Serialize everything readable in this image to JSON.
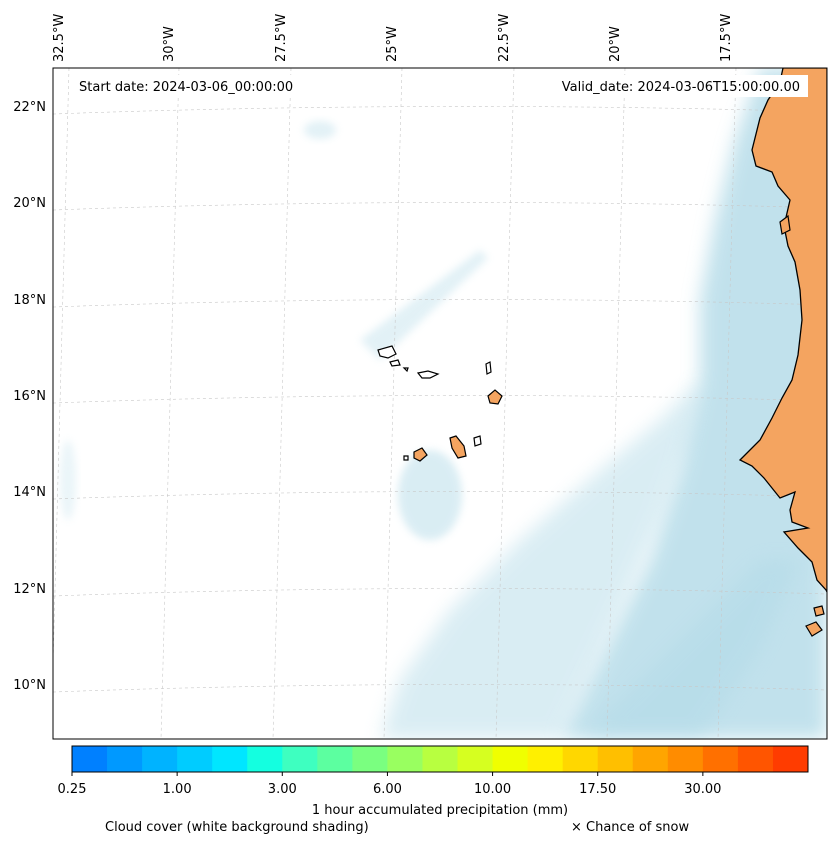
{
  "header": {
    "start_date": "Start date: 2024-03-06_00:00:00",
    "valid_date": "Valid_date: 2024-03-06T15:00:00.00"
  },
  "map": {
    "longitude_ticks": [
      "32.5°W",
      "30°W",
      "27.5°W",
      "25°W",
      "22.5°W",
      "20°W",
      "17.5°W"
    ],
    "latitude_ticks": [
      "22°N",
      "20°N",
      "18°N",
      "16°N",
      "14°N",
      "12°N",
      "10°N"
    ],
    "colors": {
      "land": "#f4a460",
      "cloud": "#add8e6",
      "gridline": "#c8c8c8",
      "coastline": "#000000"
    }
  },
  "colorbar": {
    "tick_labels": [
      "0.25",
      "1.00",
      "3.00",
      "6.00",
      "10.00",
      "17.50",
      "30.00"
    ],
    "colors": [
      "#0080ff",
      "#0099ff",
      "#00b3ff",
      "#00ccff",
      "#00e6ff",
      "#14ffe0",
      "#3effc0",
      "#5cffa0",
      "#7aff80",
      "#99ff60",
      "#b8ff40",
      "#d6ff20",
      "#f0ff00",
      "#fff000",
      "#ffd700",
      "#ffbf00",
      "#ffa500",
      "#ff8c00",
      "#ff7000",
      "#ff5500",
      "#ff3c00"
    ],
    "label": "1 hour accumulated precipitation (mm)"
  },
  "legend": {
    "cloud_cover": "Cloud cover (white background shading)",
    "snow": "× Chance of snow"
  }
}
